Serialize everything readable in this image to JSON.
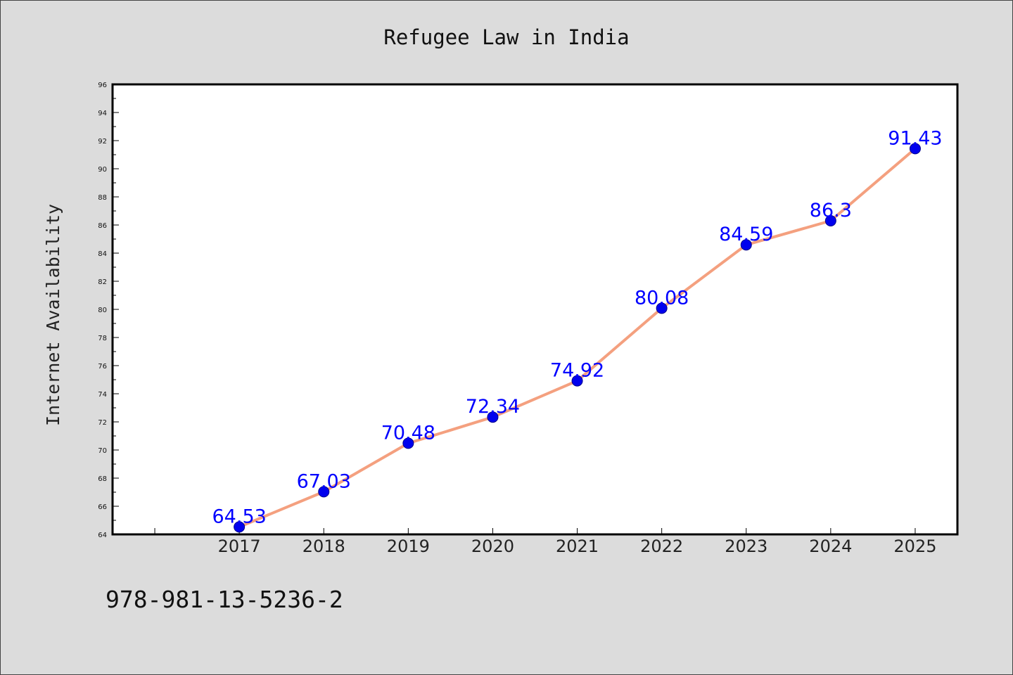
{
  "colors": {
    "background": "#dcdcdc",
    "plot_background": "#ffffff",
    "line": "#f4a07f",
    "marker": "#0000ee",
    "data_label": "#0000ff"
  },
  "footer_text": "978-981-13-5236-2",
  "chart_data": {
    "type": "line",
    "title": "Refugee Law in India",
    "xlabel": "",
    "ylabel": "Internet Availability",
    "x": [
      2017,
      2018,
      2019,
      2020,
      2021,
      2022,
      2023,
      2024,
      2025
    ],
    "xlim": [
      2015.5,
      2025.5
    ],
    "ylim": [
      64,
      96
    ],
    "yticks": [
      64,
      66,
      68,
      70,
      72,
      74,
      76,
      78,
      80,
      82,
      84,
      86,
      88,
      90,
      92,
      94,
      96
    ],
    "grid": false,
    "series": [
      {
        "values": [
          64.53,
          67.03,
          70.48,
          72.34,
          74.92,
          80.08,
          84.59,
          86.3,
          91.43
        ],
        "labels": [
          "64.53",
          "67.03",
          "70.48",
          "72.34",
          "74.92",
          "80.08",
          "84.59",
          "86.3",
          "91.43"
        ]
      }
    ]
  }
}
